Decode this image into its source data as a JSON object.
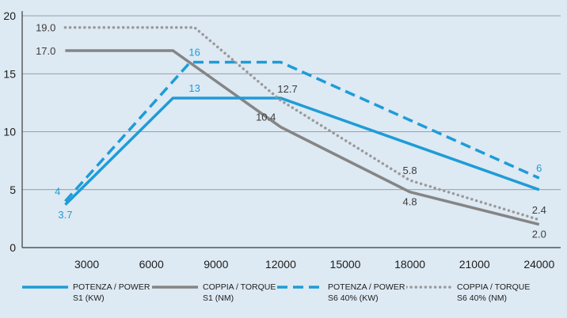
{
  "chart_data": {
    "type": "line",
    "xlim": [
      0,
      25000
    ],
    "ylim": [
      0,
      20
    ],
    "xticks": [
      "3000",
      "6000",
      "9000",
      "12000",
      "15000",
      "18000",
      "21000",
      "24000"
    ],
    "yticks": [
      "0",
      "5",
      "10",
      "15",
      "20"
    ],
    "grid": "horizontal",
    "legend_position": "bottom",
    "series": [
      {
        "name": "POTENZA / POWER\nS1 (KW)",
        "color": "#1e9cd7",
        "style": "solid",
        "points": [
          [
            2000,
            3.7
          ],
          [
            7000,
            12.9
          ],
          [
            12000,
            12.9
          ],
          [
            24000,
            5
          ]
        ],
        "labels": [
          {
            "x": 2000,
            "y": 3.7,
            "text": "3.7",
            "color": "#1e9cd7",
            "pos": "below"
          },
          {
            "x": 8000,
            "y": 12.9,
            "text": "13",
            "color": "#1e9cd7",
            "pos": "above"
          }
        ]
      },
      {
        "name": "COPPIA / TORQUE\nS1 (NM)",
        "color": "#858585",
        "style": "solid",
        "points": [
          [
            2000,
            17
          ],
          [
            7000,
            17
          ],
          [
            12000,
            10.4
          ],
          [
            18000,
            4.8
          ],
          [
            24000,
            2
          ]
        ],
        "labels": [
          {
            "x": 2000,
            "y": 17,
            "text": "17.0",
            "color": "#3c3c3c",
            "pos": "left"
          },
          {
            "x": 12000,
            "y": 10.4,
            "text": "10.4",
            "color": "#3c3c3c",
            "pos": "aboveleft"
          },
          {
            "x": 18000,
            "y": 4.8,
            "text": "4.8",
            "color": "#3c3c3c",
            "pos": "below"
          },
          {
            "x": 24000,
            "y": 2,
            "text": "2.0",
            "color": "#3c3c3c",
            "pos": "below"
          }
        ]
      },
      {
        "name": "POTENZA / POWER\nS6 40% (KW)",
        "color": "#1e9cd7",
        "style": "dashed",
        "points": [
          [
            2000,
            4
          ],
          [
            7800,
            16
          ],
          [
            12000,
            16
          ],
          [
            24000,
            6
          ]
        ],
        "labels": [
          {
            "x": 2000,
            "y": 4,
            "text": "4",
            "color": "#1e9cd7",
            "pos": "aboveleft"
          },
          {
            "x": 8000,
            "y": 16,
            "text": "16",
            "color": "#1e9cd7",
            "pos": "above"
          },
          {
            "x": 24000,
            "y": 6,
            "text": "6",
            "color": "#1e9cd7",
            "pos": "above"
          }
        ]
      },
      {
        "name": "COPPIA / TORQUE\nS6 40% (NM)",
        "color": "#9a9a9a",
        "style": "dotted",
        "points": [
          [
            2000,
            19
          ],
          [
            8000,
            19
          ],
          [
            12000,
            12.7
          ],
          [
            18000,
            5.8
          ],
          [
            24000,
            2.4
          ]
        ],
        "labels": [
          {
            "x": 2000,
            "y": 19,
            "text": "19.0",
            "color": "#3c3c3c",
            "pos": "left"
          },
          {
            "x": 12000,
            "y": 12.7,
            "text": "12.7",
            "color": "#3c3c3c",
            "pos": "aboveright"
          },
          {
            "x": 18000,
            "y": 5.8,
            "text": "5.8",
            "color": "#3c3c3c",
            "pos": "above"
          },
          {
            "x": 24000,
            "y": 2.4,
            "text": "2.4",
            "color": "#3c3c3c",
            "pos": "above"
          }
        ]
      }
    ]
  }
}
